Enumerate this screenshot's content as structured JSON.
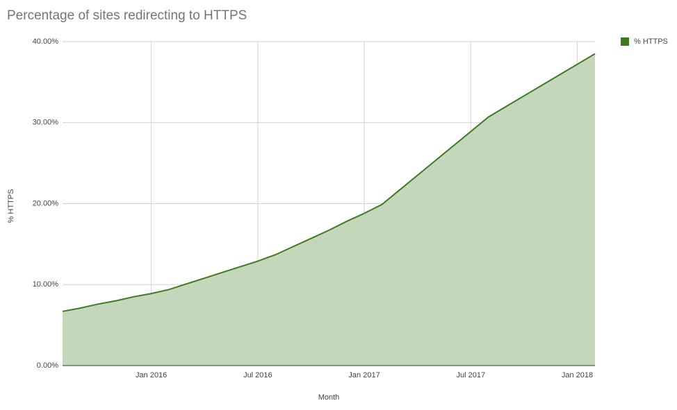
{
  "chart_data": {
    "type": "area",
    "title": "Percentage of sites redirecting to HTTPS",
    "x_label": "Month",
    "y_label": "% HTTPS",
    "x": [
      "2015-08",
      "2015-09",
      "2015-10",
      "2015-11",
      "2015-12",
      "2016-01",
      "2016-02",
      "2016-03",
      "2016-04",
      "2016-05",
      "2016-06",
      "2016-07",
      "2016-08",
      "2016-09",
      "2016-10",
      "2016-11",
      "2016-12",
      "2017-01",
      "2017-02",
      "2017-03",
      "2017-04",
      "2017-05",
      "2017-06",
      "2017-07",
      "2017-08",
      "2017-09",
      "2017-10",
      "2017-11",
      "2017-12",
      "2018-01",
      "2018-02"
    ],
    "series": [
      {
        "name": "% HTTPS",
        "color": "#3d7a1f",
        "fill": "#c5d7bb",
        "values": [
          6.7,
          7.1,
          7.6,
          8.0,
          8.5,
          8.9,
          9.4,
          10.1,
          10.8,
          11.5,
          12.2,
          12.9,
          13.7,
          14.7,
          15.7,
          16.7,
          17.8,
          18.8,
          19.9,
          21.7,
          23.5,
          25.3,
          27.1,
          28.9,
          30.7,
          32.0,
          33.3,
          34.6,
          35.9,
          37.2,
          38.5
        ]
      }
    ],
    "xlim": [
      "2015-08",
      "2018-02"
    ],
    "xticks": [
      {
        "value": "2016-01",
        "label": "Jan 2016"
      },
      {
        "value": "2016-07",
        "label": "Jul 2016"
      },
      {
        "value": "2017-01",
        "label": "Jan 2017"
      },
      {
        "value": "2017-07",
        "label": "Jul 2017"
      },
      {
        "value": "2018-01",
        "label": "Jan 2018"
      }
    ],
    "ylim": [
      0,
      40
    ],
    "yticks": [
      {
        "value": 0,
        "label": "0.00%"
      },
      {
        "value": 10,
        "label": "10.00%"
      },
      {
        "value": 20,
        "label": "20.00%"
      },
      {
        "value": 30,
        "label": "30.00%"
      },
      {
        "value": 40,
        "label": "40.00%"
      }
    ],
    "grid": true,
    "legend": "right"
  }
}
